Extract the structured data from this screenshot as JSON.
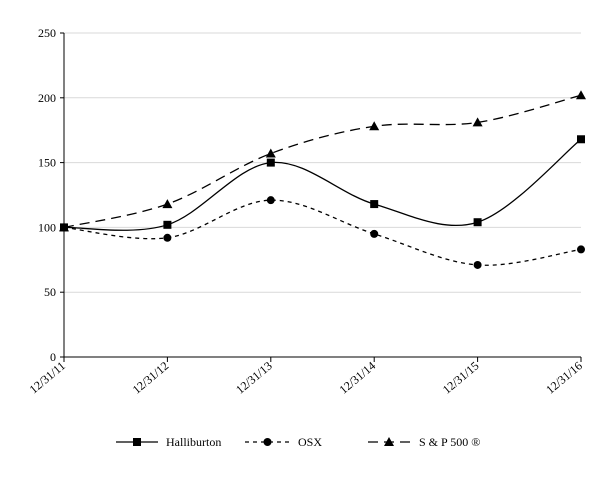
{
  "chart_data": {
    "type": "line",
    "title": "",
    "xlabel": "",
    "ylabel": "",
    "categories": [
      "12/31/11",
      "12/31/12",
      "12/31/13",
      "12/31/14",
      "12/31/15",
      "12/31/16"
    ],
    "ylim": [
      0,
      250
    ],
    "yticks": [
      0,
      50,
      100,
      150,
      200,
      250
    ],
    "grid": "horizontal",
    "legend_position": "bottom",
    "series": [
      {
        "name": "Halliburton",
        "marker": "square",
        "dash": "solid",
        "color": "#000000",
        "values": [
          100,
          102,
          150,
          118,
          104,
          168
        ]
      },
      {
        "name": "OSX",
        "marker": "circle",
        "dash": "short-dash",
        "color": "#000000",
        "values": [
          100,
          92,
          121,
          95,
          71,
          83
        ]
      },
      {
        "name": "S & P 500 ®",
        "marker": "triangle",
        "dash": "long-dash",
        "color": "#000000",
        "values": [
          100,
          118,
          157,
          178,
          181,
          202
        ]
      }
    ]
  }
}
